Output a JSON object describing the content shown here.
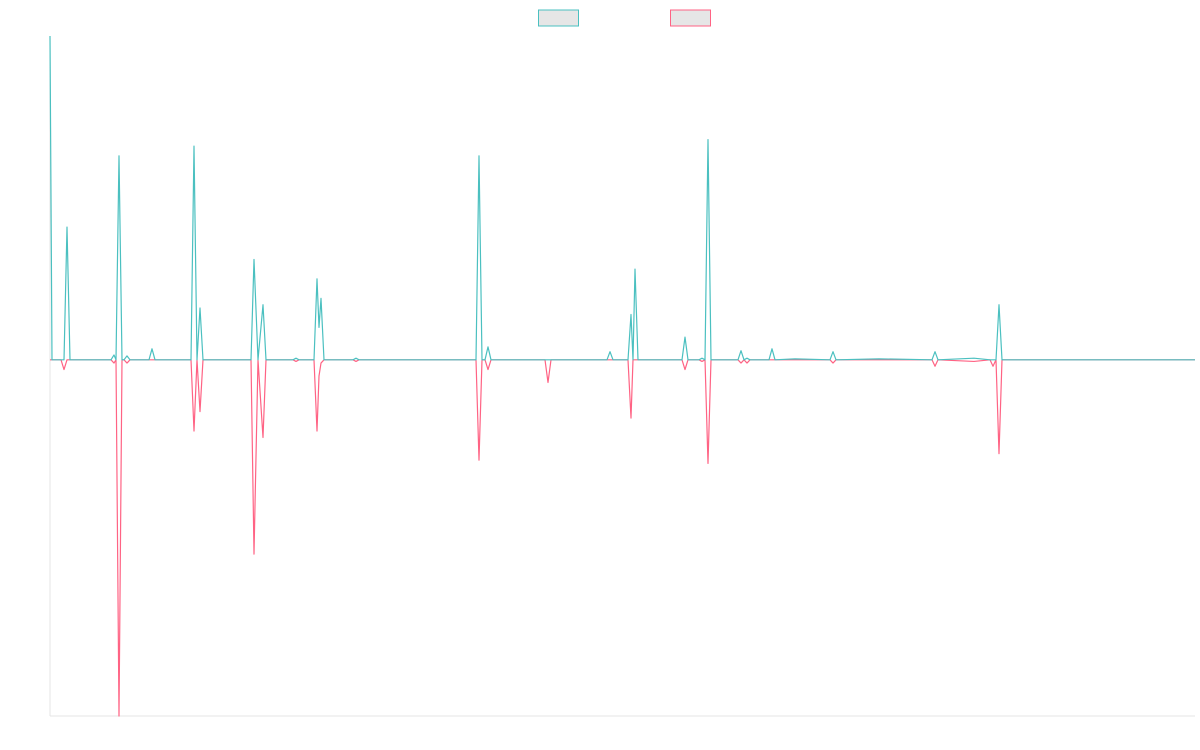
{
  "chart_data": {
    "type": "line",
    "x": [
      0,
      2,
      11,
      14,
      17,
      20,
      61,
      64,
      66,
      69,
      72,
      74,
      77,
      80,
      99,
      102,
      105,
      141,
      144,
      147,
      150,
      153,
      201,
      204,
      208,
      213,
      216,
      243,
      246,
      249,
      264,
      267,
      269,
      271,
      274,
      303,
      306,
      309,
      426,
      429,
      432,
      435,
      438,
      441,
      495,
      498,
      501,
      557,
      560,
      563,
      578,
      581,
      583,
      585,
      588,
      632,
      635,
      638,
      649,
      652,
      655,
      658,
      661,
      688,
      691,
      694,
      697,
      700,
      719,
      722,
      725,
      745,
      780,
      783,
      786,
      829,
      882,
      885,
      888,
      924,
      940,
      943,
      946,
      949,
      952,
      1145
    ],
    "series": [
      {
        "color": "#ff6384",
        "values": [
          0,
          0,
          0,
          -0.03,
          0,
          0,
          0,
          -0.01,
          0,
          -1.1,
          0,
          0,
          -0.01,
          0,
          0,
          0,
          0,
          0,
          -0.22,
          0,
          -0.16,
          0,
          0,
          -0.6,
          0,
          -0.24,
          0,
          0,
          -0.005,
          0,
          0,
          -0.22,
          -0.05,
          -0.01,
          0,
          0,
          -0.005,
          0,
          0,
          -0.31,
          0,
          0,
          -0.03,
          0,
          0,
          -0.07,
          0,
          0,
          0,
          0,
          0,
          -0.18,
          0,
          0,
          0,
          0,
          -0.03,
          0,
          0,
          -0.005,
          0,
          -0.32,
          0,
          0,
          -0.01,
          0,
          -0.01,
          0,
          0,
          0,
          0,
          0,
          0,
          -0.01,
          0,
          0,
          0,
          -0.02,
          0,
          -0.005,
          0,
          -0.02,
          0,
          -0.29,
          0,
          0
        ]
      },
      {
        "color": "#4bc0c0",
        "values": [
          1.0,
          0,
          0,
          0,
          0.41,
          0,
          0,
          0.015,
          0,
          0.63,
          0,
          0,
          0.012,
          0,
          0,
          0.034,
          0,
          0,
          0.66,
          0,
          0.16,
          0,
          0,
          0.31,
          0,
          0.17,
          0,
          0,
          0.005,
          0,
          0,
          0.25,
          0.1,
          0.19,
          0,
          0,
          0.005,
          0,
          0,
          0.63,
          0,
          0,
          0.04,
          0,
          0,
          0,
          0,
          0,
          0.025,
          0,
          0,
          0.14,
          0,
          0.28,
          0,
          0,
          0.07,
          0,
          0,
          0.005,
          0,
          0.68,
          0,
          0,
          0.028,
          0,
          0.005,
          0,
          0,
          0.034,
          0,
          0.003,
          0,
          0.025,
          0,
          0.003,
          0,
          0.025,
          0,
          0.005,
          0,
          0,
          0,
          0.17,
          0,
          0
        ]
      }
    ],
    "xlim": [
      0,
      1145
    ],
    "ylim": [
      -1.1,
      1
    ],
    "legend": "top"
  }
}
